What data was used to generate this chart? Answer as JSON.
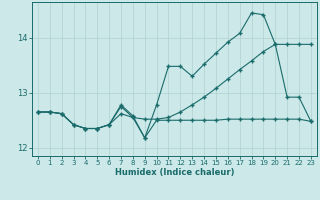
{
  "xlabel": "Humidex (Indice chaleur)",
  "bg_color": "#cce8e8",
  "line_color": "#1a6b6b",
  "grid_color": "#b0d0d0",
  "xlim": [
    -0.5,
    23.5
  ],
  "ylim": [
    11.85,
    14.65
  ],
  "yticks": [
    12,
    13,
    14
  ],
  "xticks": [
    0,
    1,
    2,
    3,
    4,
    5,
    6,
    7,
    8,
    9,
    10,
    11,
    12,
    13,
    14,
    15,
    16,
    17,
    18,
    19,
    20,
    21,
    22,
    23
  ],
  "line1_x": [
    0,
    1,
    2,
    3,
    4,
    5,
    6,
    7,
    8,
    9,
    10,
    11,
    12,
    13,
    14,
    15,
    16,
    17,
    18,
    19,
    20,
    21,
    22,
    23
  ],
  "line1_y": [
    12.65,
    12.65,
    12.62,
    12.42,
    12.35,
    12.35,
    12.42,
    12.75,
    12.55,
    12.18,
    12.5,
    12.5,
    12.5,
    12.5,
    12.5,
    12.5,
    12.52,
    12.52,
    12.52,
    12.52,
    12.52,
    12.52,
    12.52,
    12.48
  ],
  "line2_x": [
    0,
    1,
    2,
    3,
    4,
    5,
    6,
    7,
    8,
    9,
    10,
    11,
    12,
    13,
    14,
    15,
    16,
    17,
    18,
    19,
    20,
    21,
    22,
    23
  ],
  "line2_y": [
    12.65,
    12.65,
    12.62,
    12.42,
    12.35,
    12.35,
    12.42,
    12.78,
    12.58,
    12.18,
    12.78,
    13.48,
    13.48,
    13.3,
    13.52,
    13.72,
    13.92,
    14.08,
    14.45,
    14.42,
    13.88,
    12.92,
    12.92,
    12.48
  ],
  "line3_x": [
    0,
    1,
    2,
    3,
    4,
    5,
    6,
    7,
    8,
    9,
    10,
    11,
    12,
    13,
    14,
    15,
    16,
    17,
    18,
    19,
    20,
    21,
    22,
    23
  ],
  "line3_y": [
    12.65,
    12.65,
    12.62,
    12.42,
    12.35,
    12.35,
    12.42,
    12.62,
    12.55,
    12.52,
    12.52,
    12.55,
    12.65,
    12.78,
    12.92,
    13.08,
    13.25,
    13.42,
    13.58,
    13.75,
    13.88,
    13.88,
    13.88,
    13.88
  ]
}
